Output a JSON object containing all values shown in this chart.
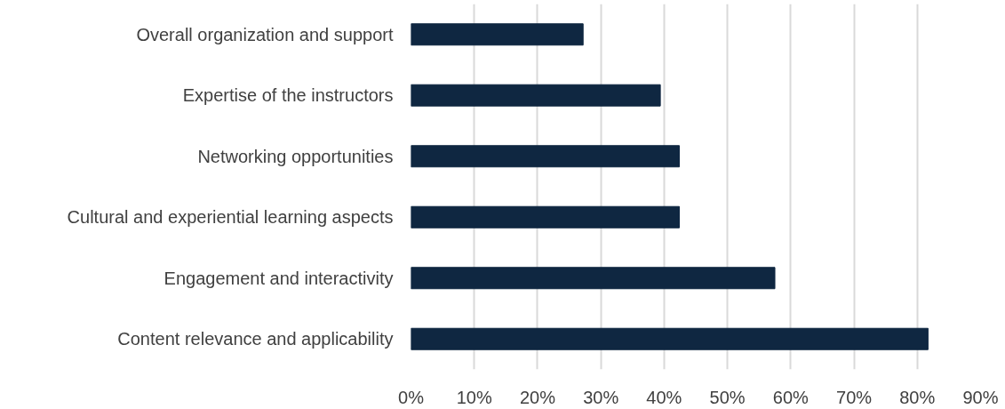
{
  "chart_data": {
    "type": "bar",
    "orientation": "horizontal",
    "categories": [
      "Overall organization and support",
      "Expertise of the instructors",
      "Networking opportunities",
      "Cultural and experiential learning aspects",
      "Engagement and interactivity",
      "Content relevance and applicability"
    ],
    "values": [
      27.2,
      39.4,
      42.4,
      42.4,
      57.5,
      81.7
    ],
    "color": "#0f2741",
    "xlim": [
      0,
      90
    ],
    "xticks": [
      {
        "value": 0,
        "label": "0%"
      },
      {
        "value": 10,
        "label": "10%"
      },
      {
        "value": 20,
        "label": "20%"
      },
      {
        "value": 30,
        "label": "30%"
      },
      {
        "value": 40,
        "label": "40%"
      },
      {
        "value": 50,
        "label": "50%"
      },
      {
        "value": 60,
        "label": "60%"
      },
      {
        "value": 70,
        "label": "70%"
      },
      {
        "value": 80,
        "label": "80%"
      },
      {
        "value": 90,
        "label": "90%"
      }
    ],
    "grid": "x"
  }
}
